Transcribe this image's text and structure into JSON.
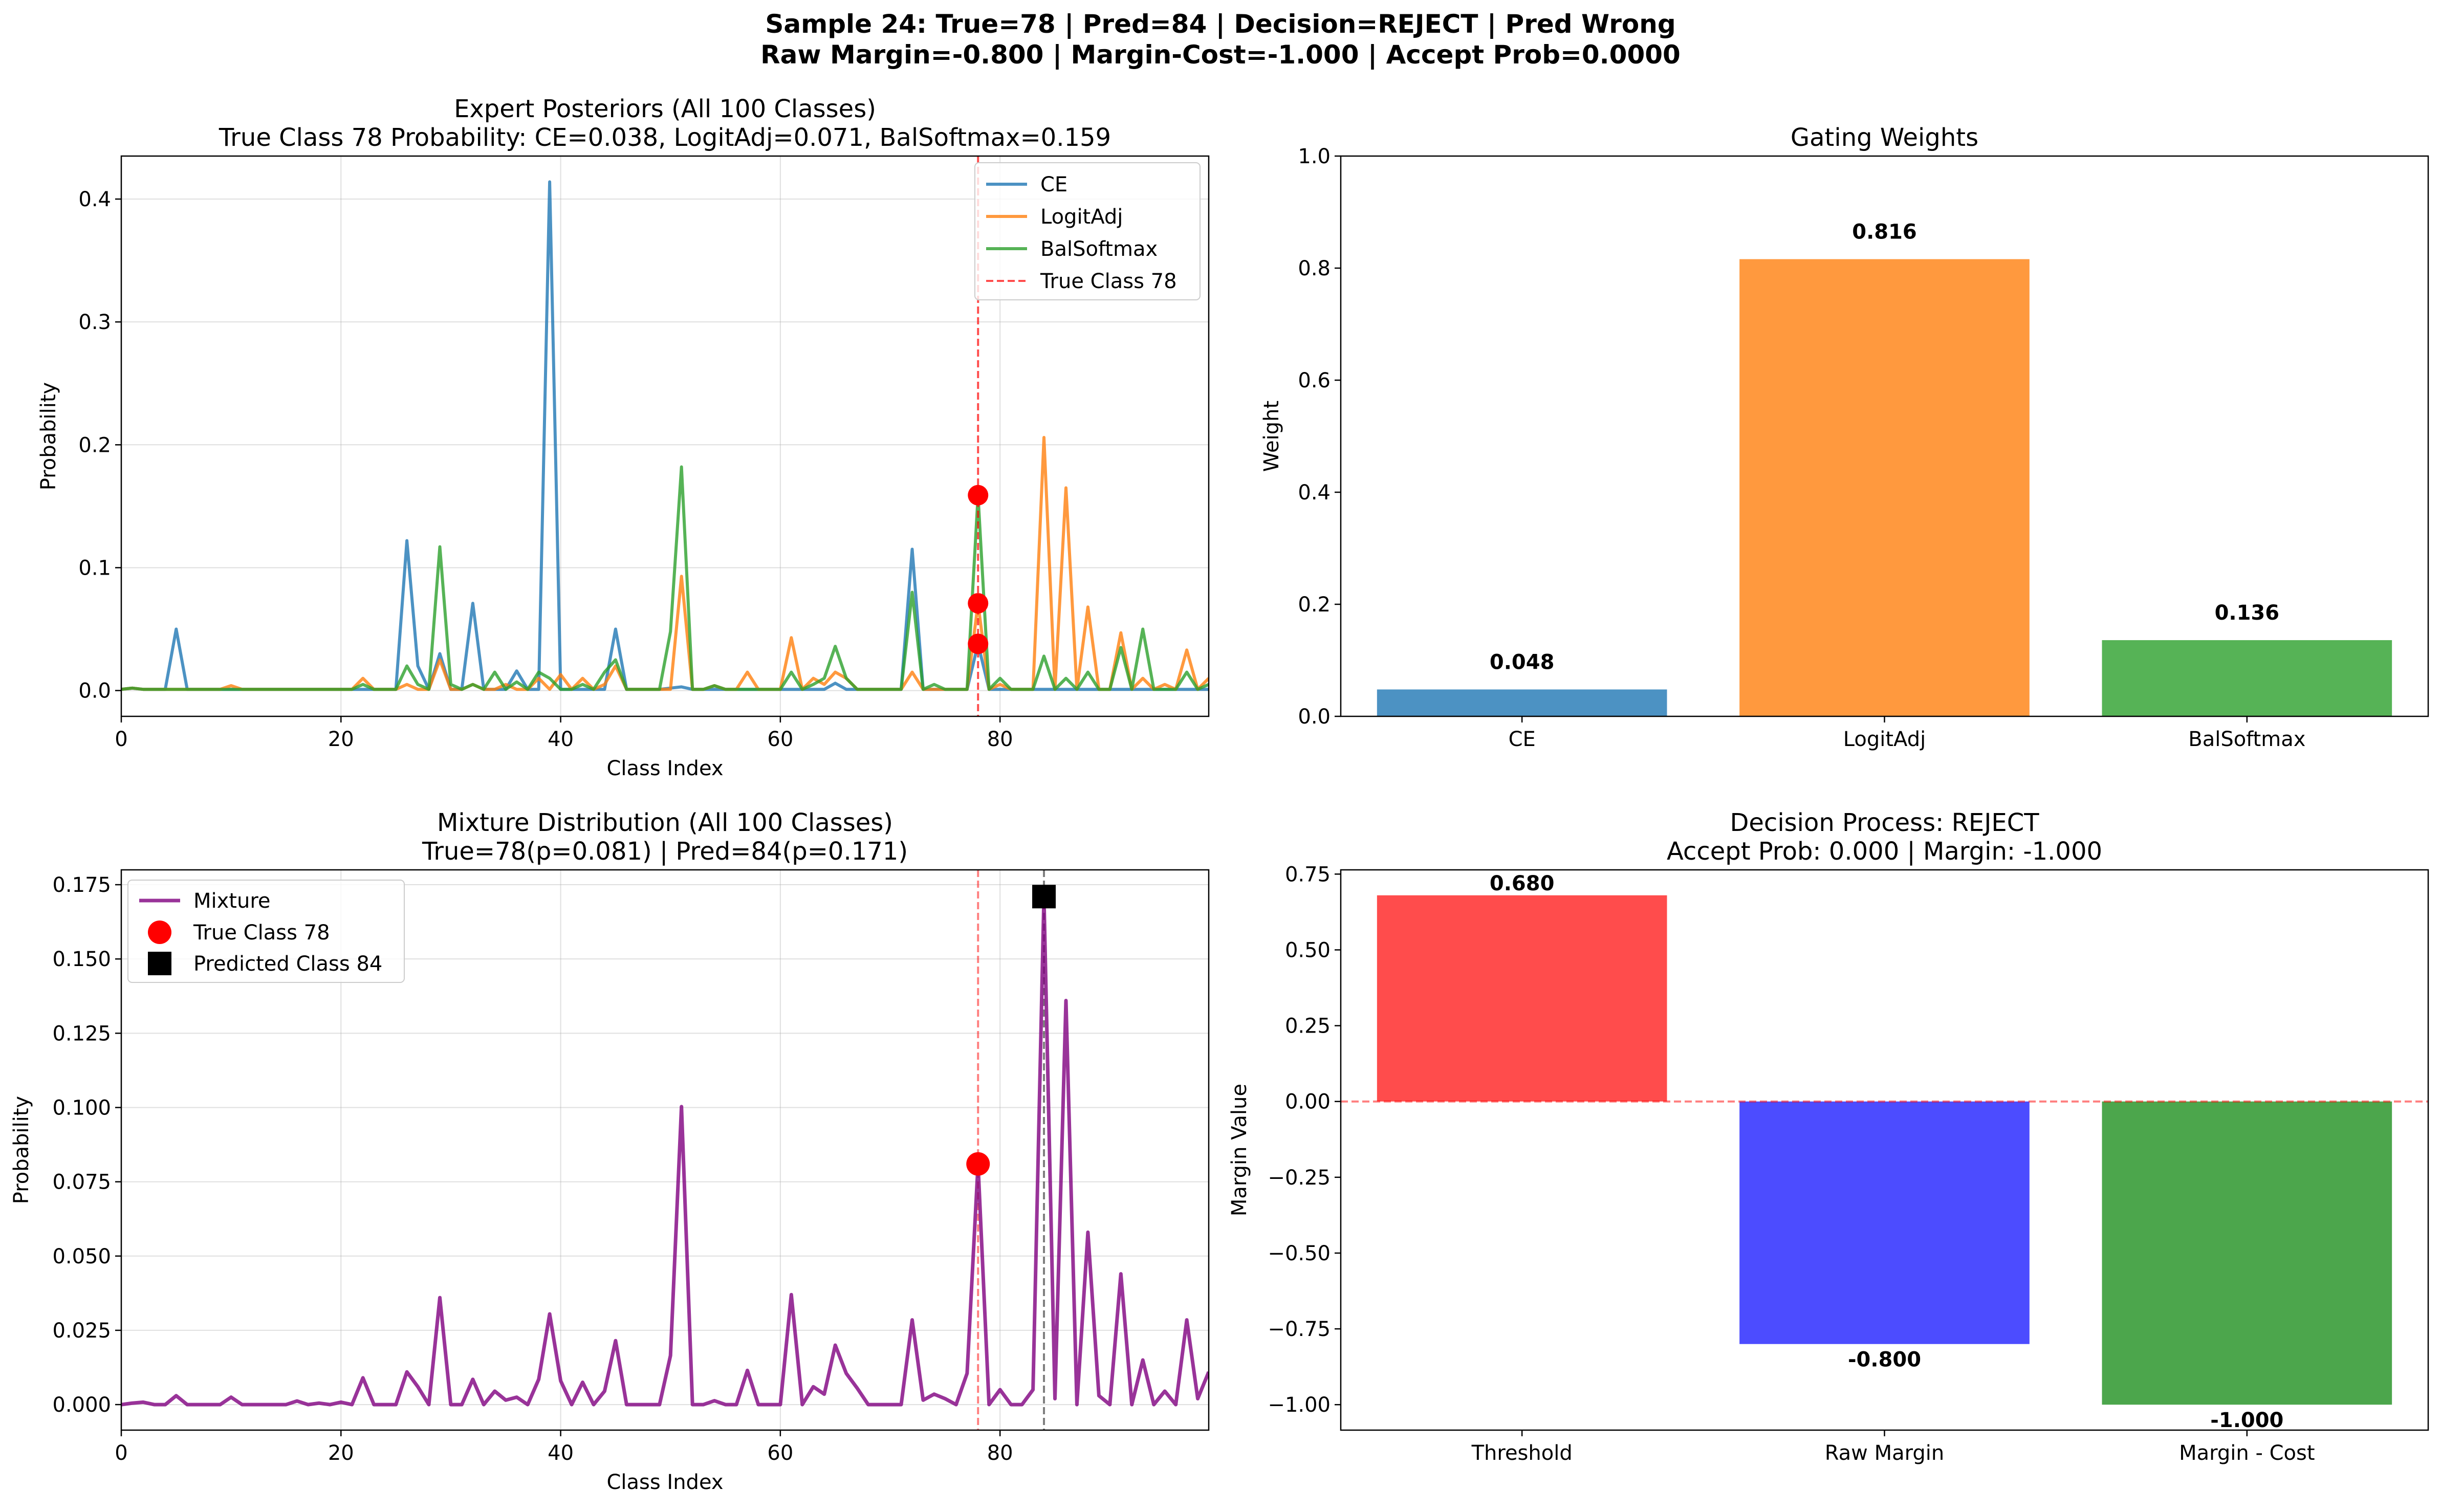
{
  "suptitle": [
    "Sample 24: True=78 | Pred=84 | Decision=REJECT | Pred Wrong",
    "Raw Margin=-0.800 | Margin-Cost=-1.000 | Accept Prob=0.0000"
  ],
  "chart_data": [
    {
      "id": "expert_posteriors",
      "type": "line",
      "title": [
        "Expert Posteriors (All 100 Classes)",
        "True Class 78 Probability: CE=0.038, LogitAdj=0.071, BalSoftmax=0.159"
      ],
      "xlabel": "Class Index",
      "ylabel": "Probability",
      "xlim": [
        0,
        99
      ],
      "ylim": [
        -0.021,
        0.435
      ],
      "xticks": [
        0,
        20,
        40,
        60,
        80
      ],
      "yticks": [
        0.0,
        0.1,
        0.2,
        0.3,
        0.4
      ],
      "ytick_labels": [
        "0.0",
        "0.1",
        "0.2",
        "0.3",
        "0.4"
      ],
      "grid": true,
      "legend": "top-right",
      "colors": {
        "CE": "#1f77b4",
        "LogitAdj": "#ff7f0e",
        "BalSoftmax": "#2ca02c",
        "True Class 78": "#ff0000"
      },
      "series": [
        {
          "name": "CE",
          "values": [
            0.001,
            0.002,
            0.001,
            0.001,
            0.001,
            0.05,
            0.001,
            0.001,
            0.001,
            0.001,
            0.001,
            0.001,
            0.001,
            0.001,
            0.001,
            0.001,
            0.001,
            0.001,
            0.001,
            0.001,
            0.001,
            0.001,
            0.001,
            0.001,
            0.001,
            0.001,
            0.122,
            0.02,
            0.001,
            0.03,
            0.001,
            0.001,
            0.071,
            0.001,
            0.001,
            0.001,
            0.016,
            0.001,
            0.001,
            0.414,
            0.001,
            0.001,
            0.001,
            0.001,
            0.001,
            0.05,
            0.001,
            0.001,
            0.001,
            0.001,
            0.002,
            0.003,
            0.001,
            0.001,
            0.001,
            0.001,
            0.001,
            0.001,
            0.001,
            0.001,
            0.001,
            0.001,
            0.001,
            0.001,
            0.001,
            0.006,
            0.001,
            0.001,
            0.001,
            0.001,
            0.001,
            0.001,
            0.115,
            0.001,
            0.001,
            0.001,
            0.001,
            0.001,
            0.038,
            0.001,
            0.001,
            0.001,
            0.001,
            0.001,
            0.001,
            0.001,
            0.001,
            0.001,
            0.001,
            0.001,
            0.001,
            0.001,
            0.001,
            0.001,
            0.001,
            0.001,
            0.001,
            0.001,
            0.001,
            0.001
          ]
        },
        {
          "name": "LogitAdj",
          "values": [
            0.001,
            0.002,
            0.001,
            0.001,
            0.001,
            0.001,
            0.001,
            0.001,
            0.001,
            0.001,
            0.004,
            0.001,
            0.001,
            0.001,
            0.001,
            0.001,
            0.001,
            0.001,
            0.001,
            0.001,
            0.001,
            0.001,
            0.01,
            0.001,
            0.001,
            0.001,
            0.005,
            0.001,
            0.001,
            0.025,
            0.001,
            0.001,
            0.005,
            0.001,
            0.001,
            0.005,
            0.001,
            0.001,
            0.01,
            0.001,
            0.013,
            0.001,
            0.01,
            0.001,
            0.005,
            0.02,
            0.001,
            0.001,
            0.001,
            0.001,
            0.001,
            0.093,
            0.001,
            0.001,
            0.004,
            0.001,
            0.001,
            0.015,
            0.001,
            0.001,
            0.001,
            0.043,
            0.001,
            0.01,
            0.005,
            0.015,
            0.01,
            0.001,
            0.001,
            0.001,
            0.001,
            0.001,
            0.015,
            0.001,
            0.001,
            0.001,
            0.001,
            0.001,
            0.071,
            0.001,
            0.005,
            0.001,
            0.001,
            0.001,
            0.206,
            0.001,
            0.165,
            0.001,
            0.068,
            0.001,
            0.001,
            0.047,
            0.001,
            0.01,
            0.001,
            0.005,
            0.001,
            0.033,
            0.001,
            0.01
          ]
        },
        {
          "name": "BalSoftmax",
          "values": [
            0.001,
            0.002,
            0.001,
            0.001,
            0.001,
            0.001,
            0.001,
            0.001,
            0.001,
            0.001,
            0.001,
            0.001,
            0.001,
            0.001,
            0.001,
            0.001,
            0.001,
            0.001,
            0.001,
            0.001,
            0.001,
            0.001,
            0.005,
            0.001,
            0.001,
            0.001,
            0.02,
            0.005,
            0.001,
            0.117,
            0.005,
            0.001,
            0.005,
            0.001,
            0.015,
            0.001,
            0.007,
            0.001,
            0.015,
            0.01,
            0.001,
            0.001,
            0.005,
            0.001,
            0.015,
            0.025,
            0.001,
            0.001,
            0.001,
            0.001,
            0.048,
            0.182,
            0.001,
            0.001,
            0.004,
            0.001,
            0.001,
            0.001,
            0.001,
            0.001,
            0.001,
            0.015,
            0.001,
            0.005,
            0.01,
            0.036,
            0.01,
            0.001,
            0.001,
            0.001,
            0.001,
            0.001,
            0.08,
            0.001,
            0.005,
            0.001,
            0.001,
            0.001,
            0.159,
            0.001,
            0.01,
            0.001,
            0.001,
            0.001,
            0.028,
            0.001,
            0.01,
            0.001,
            0.015,
            0.001,
            0.001,
            0.035,
            0.001,
            0.05,
            0.001,
            0.001,
            0.001,
            0.015,
            0.001,
            0.005
          ]
        }
      ],
      "true_class": 78,
      "true_points": [
        0.038,
        0.071,
        0.159
      ]
    },
    {
      "id": "gating_weights",
      "type": "bar",
      "title": [
        "Gating Weights"
      ],
      "xlabel": "",
      "ylabel": "Weight",
      "categories": [
        "CE",
        "LogitAdj",
        "BalSoftmax"
      ],
      "values": [
        0.048,
        0.816,
        0.136
      ],
      "value_labels": [
        "0.048",
        "0.816",
        "0.136"
      ],
      "colors": [
        "#1f77b4",
        "#ff7f0e",
        "#2ca02c"
      ],
      "ylim": [
        0,
        1.0
      ],
      "yticks": [
        0.0,
        0.2,
        0.4,
        0.6,
        0.8,
        1.0
      ],
      "ytick_labels": [
        "0.0",
        "0.2",
        "0.4",
        "0.6",
        "0.8",
        "1.0"
      ],
      "grid": false
    },
    {
      "id": "mixture_distribution",
      "type": "line",
      "title": [
        "Mixture Distribution (All 100 Classes)",
        "True=78(p=0.081) | Pred=84(p=0.171)"
      ],
      "xlabel": "Class Index",
      "ylabel": "Probability",
      "xlim": [
        0,
        99
      ],
      "ylim": [
        -0.0086,
        0.18
      ],
      "xticks": [
        0,
        20,
        40,
        60,
        80
      ],
      "yticks": [
        0.0,
        0.025,
        0.05,
        0.075,
        0.1,
        0.125,
        0.15,
        0.175
      ],
      "ytick_labels": [
        "0.000",
        "0.025",
        "0.050",
        "0.075",
        "0.100",
        "0.125",
        "0.150",
        "0.175"
      ],
      "grid": true,
      "legend": "top-left",
      "colors": {
        "Mixture": "#800080",
        "True Class 78": "#ff0000",
        "Predicted Class 84": "#000000"
      },
      "series": [
        {
          "name": "Mixture",
          "values": [
            0.0,
            0.0005,
            0.0008,
            0.0,
            0.0,
            0.003,
            0.0,
            0.0,
            0.0,
            0.0,
            0.0025,
            0.0,
            0.0,
            0.0,
            0.0,
            0.0,
            0.0012,
            0.0,
            0.0005,
            0.0,
            0.0008,
            0.0,
            0.009,
            0.0,
            0.0,
            0.0,
            0.011,
            0.006,
            0.0,
            0.036,
            0.0,
            0.0,
            0.0085,
            0.0,
            0.0045,
            0.0015,
            0.0025,
            0.0,
            0.0085,
            0.0305,
            0.008,
            0.0,
            0.0075,
            0.0,
            0.0045,
            0.0215,
            0.0,
            0.0,
            0.0,
            0.0,
            0.0165,
            0.1003,
            0.0,
            0.0,
            0.0013,
            0.0,
            0.0,
            0.0115,
            0.0,
            0.0,
            0.0,
            0.037,
            0.0,
            0.006,
            0.0035,
            0.02,
            0.0105,
            0.0055,
            0.0,
            0.0,
            0.0,
            0.0,
            0.0285,
            0.0015,
            0.0035,
            0.002,
            0.0,
            0.0105,
            0.081,
            0.0,
            0.005,
            0.0,
            0.0,
            0.005,
            0.171,
            0.002,
            0.136,
            0.0,
            0.058,
            0.003,
            0.0,
            0.044,
            0.0,
            0.015,
            0.0,
            0.0045,
            0.0,
            0.0285,
            0.002,
            0.011
          ]
        }
      ],
      "true_class": 78,
      "true_point": 0.081,
      "pred_class": 84,
      "pred_point": 0.171
    },
    {
      "id": "decision_process",
      "type": "bar",
      "title": [
        "Decision Process: REJECT",
        "Accept Prob: 0.000 | Margin: -1.000"
      ],
      "xlabel": "",
      "ylabel": "Margin Value",
      "categories": [
        "Threshold",
        "Raw Margin",
        "Margin - Cost"
      ],
      "values": [
        0.68,
        -0.8,
        -1.0
      ],
      "value_labels": [
        "0.680",
        "-0.800",
        "-1.000"
      ],
      "colors": [
        "#ff0000",
        "#0000ff",
        "#008000"
      ],
      "ylim": [
        -1.084,
        0.764
      ],
      "yticks": [
        -1.0,
        -0.75,
        -0.5,
        -0.25,
        0.0,
        0.25,
        0.5,
        0.75
      ],
      "ytick_labels": [
        "−1.00",
        "−0.75",
        "−0.50",
        "−0.25",
        "0.00",
        "0.25",
        "0.50",
        "0.75"
      ],
      "grid": false
    }
  ]
}
